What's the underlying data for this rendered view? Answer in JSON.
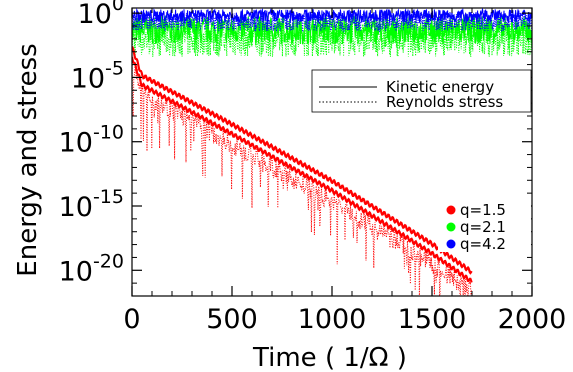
{
  "chart_data": {
    "type": "line",
    "xlabel": "Time ( 1/Ω )",
    "ylabel": "Energy and stress",
    "xlim": [
      0,
      2000
    ],
    "ylim_log10": [
      -22,
      0.4
    ],
    "yscale": "log",
    "x_ticks": [
      {
        "value": 0,
        "label": "0"
      },
      {
        "value": 500,
        "label": "500"
      },
      {
        "value": 1000,
        "label": "1000"
      },
      {
        "value": 1500,
        "label": "1500"
      },
      {
        "value": 2000,
        "label": "2000"
      }
    ],
    "y_ticks": [
      {
        "exp": 0,
        "base": "10",
        "sup": "0"
      },
      {
        "exp": -5,
        "base": "10",
        "sup": "-5"
      },
      {
        "exp": -10,
        "base": "10",
        "sup": "-10"
      },
      {
        "exp": -15,
        "base": "10",
        "sup": "-15"
      },
      {
        "exp": -20,
        "base": "10",
        "sup": "-20"
      }
    ],
    "linestyle_legend": [
      {
        "label": "Kinetic energy",
        "style": "solid"
      },
      {
        "label": "Reynolds stress",
        "style": "dotted"
      }
    ],
    "series": [
      {
        "name": "q=1.5",
        "color": "#ff0000",
        "behavior": "exponential decay",
        "kinetic_log10": [
          [
            0,
            -3
          ],
          [
            50,
            -5.2
          ],
          [
            500,
            -9
          ],
          [
            1000,
            -13.4
          ],
          [
            1500,
            -18.3
          ],
          [
            1700,
            -20.5
          ]
        ],
        "stress_log10": [
          [
            0,
            -4
          ],
          [
            50,
            -6.5
          ],
          [
            500,
            -10.5
          ],
          [
            1000,
            -15
          ],
          [
            1500,
            -19.8
          ],
          [
            1700,
            -22
          ]
        ]
      },
      {
        "name": "q=2.1",
        "color": "#00ff00",
        "behavior": "saturated turbulence",
        "kinetic_log10_mean": -1.3,
        "stress_log10_mean": -2.0
      },
      {
        "name": "q=4.2",
        "color": "#0000ff",
        "behavior": "saturated turbulence",
        "kinetic_log10_mean": -0.2,
        "stress_log10_mean": -0.7
      }
    ]
  }
}
